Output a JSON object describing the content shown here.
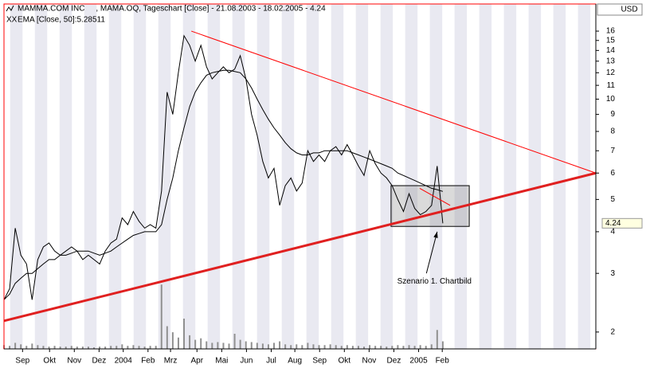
{
  "chart_data": {
    "type": "line",
    "log_scale": true,
    "currency": "USD",
    "series": [
      {
        "name": "MAMMA.COM INC     , MAMA.OQ, Tageschart [Close] - 21.08.2003 - 18.02.2005 - 4.24",
        "color": "#000000",
        "values": [
          2.5,
          2.7,
          4.1,
          3.4,
          3.2,
          2.5,
          3.3,
          3.6,
          3.7,
          3.5,
          3.4,
          3.5,
          3.6,
          3.5,
          3.3,
          3.4,
          3.3,
          3.2,
          3.5,
          3.7,
          3.8,
          4.4,
          4.2,
          4.6,
          4.3,
          4.1,
          4.2,
          4.1,
          5.3,
          10.5,
          9.0,
          12.0,
          15.5,
          14.5,
          13.0,
          14.5,
          12.5,
          11.5,
          12.0,
          12.5,
          12.0,
          12.3,
          13.5,
          11.5,
          9.0,
          7.8,
          6.5,
          5.8,
          6.2,
          4.8,
          5.5,
          5.8,
          5.3,
          5.6,
          7.0,
          6.5,
          6.8,
          6.5,
          7.0,
          7.2,
          6.8,
          7.3,
          6.8,
          6.3,
          5.9,
          7.0,
          6.4,
          6.0,
          5.8,
          5.5,
          5.0,
          4.6,
          5.2,
          4.7,
          4.5,
          4.6,
          4.8,
          6.3,
          4.24
        ]
      },
      {
        "name": "EMA [Close, 50]:5.28511",
        "color": "#000000",
        "values": [
          2.5,
          2.6,
          2.8,
          2.9,
          3.0,
          3.0,
          3.1,
          3.2,
          3.3,
          3.3,
          3.4,
          3.4,
          3.45,
          3.5,
          3.5,
          3.5,
          3.45,
          3.4,
          3.45,
          3.5,
          3.6,
          3.7,
          3.8,
          3.9,
          3.95,
          4.0,
          4.0,
          4.0,
          4.2,
          5.0,
          5.8,
          7.0,
          8.2,
          9.5,
          10.5,
          11.2,
          11.8,
          12.0,
          12.1,
          12.2,
          12.2,
          12.1,
          12.0,
          11.5,
          10.8,
          10.0,
          9.3,
          8.7,
          8.2,
          7.8,
          7.4,
          7.1,
          6.9,
          6.8,
          6.8,
          6.9,
          6.9,
          7.0,
          7.0,
          7.0,
          7.0,
          7.0,
          6.9,
          6.8,
          6.7,
          6.6,
          6.5,
          6.4,
          6.3,
          6.2,
          6.0,
          5.9,
          5.8,
          5.7,
          5.6,
          5.5,
          5.4,
          5.35,
          5.285
        ]
      }
    ],
    "volume": {
      "color": "#909090",
      "values": [
        5,
        4,
        8,
        6,
        4,
        7,
        5,
        4,
        3,
        4,
        3,
        3,
        4,
        3,
        3,
        3,
        2,
        3,
        3,
        4,
        4,
        6,
        4,
        5,
        4,
        3,
        4,
        4,
        85,
        30,
        22,
        15,
        40,
        18,
        12,
        14,
        10,
        8,
        9,
        8,
        7,
        20,
        12,
        10,
        9,
        8,
        7,
        6,
        8,
        10,
        6,
        5,
        6,
        5,
        8,
        6,
        5,
        5,
        6,
        5,
        4,
        5,
        4,
        4,
        3,
        5,
        4,
        4,
        3,
        4,
        5,
        4,
        5,
        4,
        5,
        4,
        6,
        25,
        10
      ]
    },
    "xlim": [
      0,
      105.2
    ],
    "xticks": [
      {
        "value": 3.3,
        "label": "Sep"
      },
      {
        "value": 8.1,
        "label": "Okt"
      },
      {
        "value": 12.5,
        "label": "Nov"
      },
      {
        "value": 16.9,
        "label": "Dez"
      },
      {
        "value": 21.2,
        "label": "2004"
      },
      {
        "value": 25.6,
        "label": "Feb"
      },
      {
        "value": 29.6,
        "label": "Mrz"
      },
      {
        "value": 34.3,
        "label": "Apr"
      },
      {
        "value": 38.7,
        "label": "Mai"
      },
      {
        "value": 43.1,
        "label": "Jun"
      },
      {
        "value": 47.5,
        "label": "Jul"
      },
      {
        "value": 51.7,
        "label": "Aug"
      },
      {
        "value": 56.1,
        "label": "Sep"
      },
      {
        "value": 60.5,
        "label": "Okt"
      },
      {
        "value": 64.9,
        "label": "Nov"
      },
      {
        "value": 69.3,
        "label": "Dez"
      },
      {
        "value": 73.7,
        "label": "2005"
      },
      {
        "value": 77.9,
        "label": "Feb"
      }
    ],
    "ylim": [
      1.78,
      19.3
    ],
    "yticks": [
      16,
      15,
      14,
      13,
      12,
      11,
      10,
      9,
      8,
      7,
      6,
      5,
      4,
      3,
      2
    ],
    "trend_lines": [
      {
        "color": "#ff0000",
        "width": 1,
        "x": [
          33.3,
          105.2
        ],
        "y": [
          16,
          6
        ]
      },
      {
        "color": "#e02020",
        "width": 3,
        "x": [
          0,
          105.2
        ],
        "y": [
          2.16,
          6
        ]
      },
      {
        "color": "#ff0000",
        "width": 1,
        "x": [
          73.9,
          79.3
        ],
        "y": [
          5.4,
          4.8
        ]
      }
    ],
    "box": {
      "x": [
        68.8,
        82.7
      ],
      "y": [
        5.5,
        4.15
      ]
    },
    "annotation": {
      "text": "Szenario 1. Chartbild",
      "x": 76.5,
      "y": 2.84,
      "arrow_to": [
        77.0,
        4.0
      ]
    }
  }
}
